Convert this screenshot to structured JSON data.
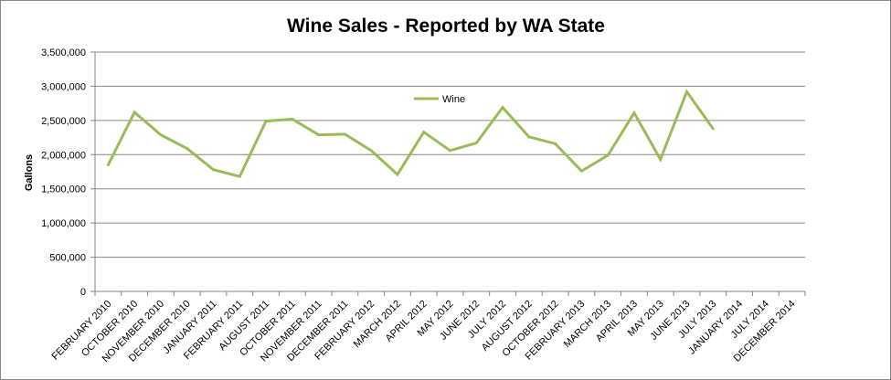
{
  "chart_data": {
    "type": "line",
    "title": "Wine Sales - Reported by WA State",
    "xlabel": "",
    "ylabel": "Gallons",
    "ylim": [
      0,
      3500000
    ],
    "yticks": [
      "0",
      "500,000",
      "1,000,000",
      "1,500,000",
      "2,000,000",
      "2,500,000",
      "3,000,000",
      "3,500,000"
    ],
    "grid": true,
    "legend_position": "top-center",
    "categories": [
      "FEBRUARY 2010",
      "OCTOBER 2010",
      "NOVEMBER 2010",
      "DECEMBER 2010",
      "JANUARY 2011",
      "FEBRUARY 2011",
      "AUGUST 2011",
      "OCTOBER 2011",
      "NOVEMBER 2011",
      "DECEMBER 2011",
      "FEBRUARY 2012",
      "MARCH 2012",
      "APRIL 2012",
      "MAY 2012",
      "JUNE 2012",
      "JULY 2012",
      "AUGUST 2012",
      "OCTOBER 2012",
      "FEBRUARY 2013",
      "MARCH 2013",
      "APRIL 2013",
      "MAY 2013",
      "JUNE 2013",
      "JULY 2013",
      "JANUARY 2014",
      "JULY 2014",
      "DECEMBER 2014"
    ],
    "series": [
      {
        "name": "Wine",
        "color": "#9bbb59",
        "values": [
          1850000,
          2620000,
          2290000,
          2090000,
          1780000,
          1680000,
          2490000,
          2520000,
          2290000,
          2300000,
          2060000,
          1710000,
          2330000,
          2060000,
          2170000,
          2690000,
          2260000,
          2160000,
          1760000,
          1990000,
          2610000,
          1930000,
          2920000,
          2380000,
          null,
          null,
          null
        ]
      }
    ]
  }
}
